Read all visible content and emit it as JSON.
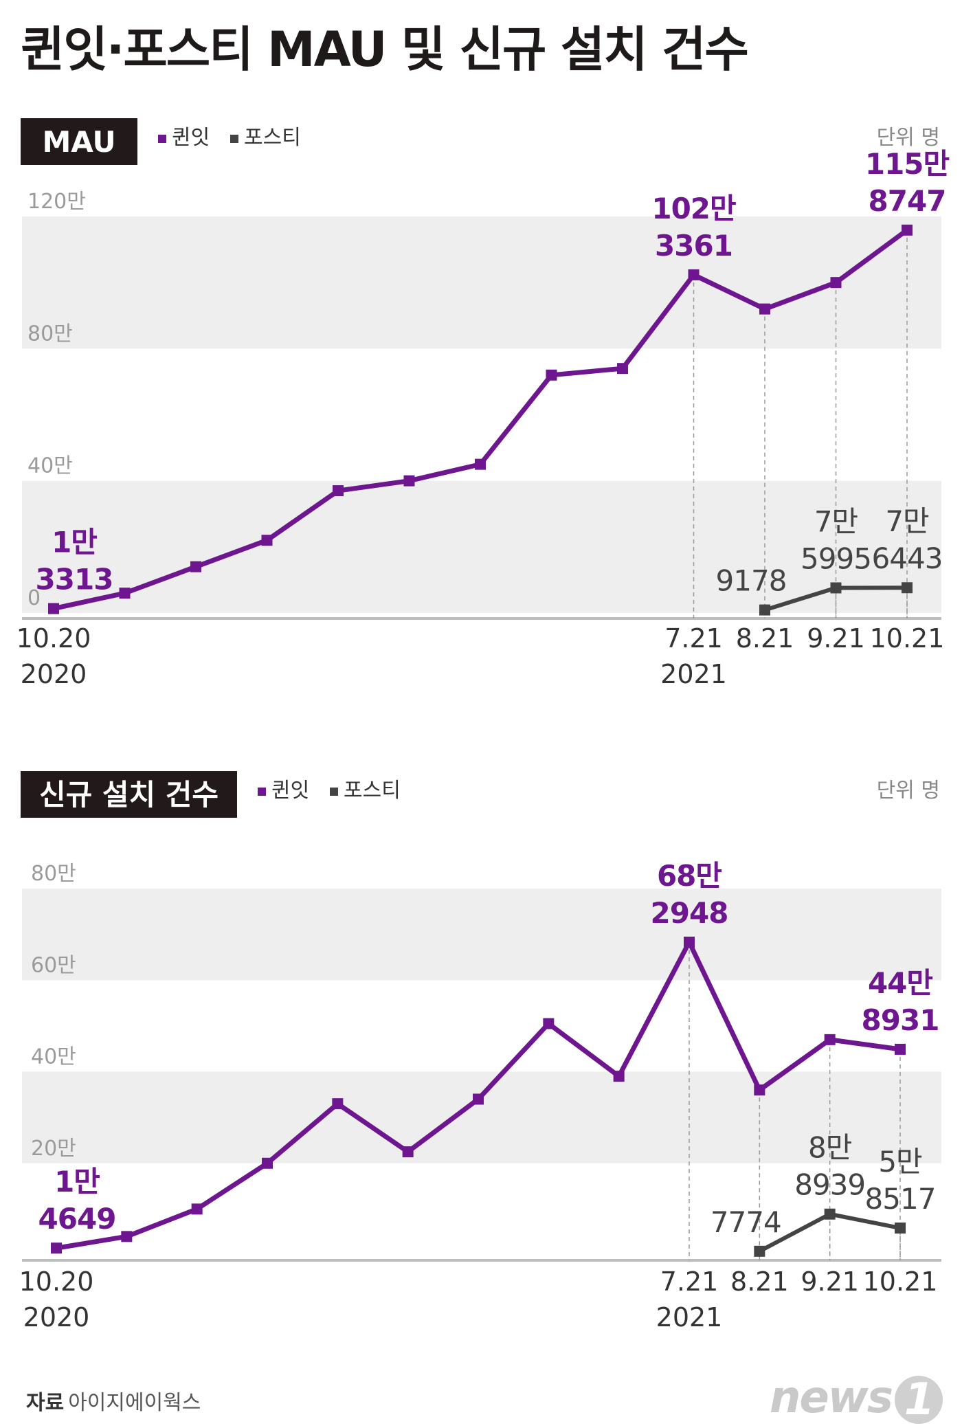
{
  "title": "퀸잇·포스티 MAU 및 신규 설치 건수",
  "source_label": "자료",
  "source_name": "아이지에이웍스",
  "logo_text": "news",
  "logo_mark": "1",
  "colors": {
    "queenit": "#6d168f",
    "posty": "#444444",
    "band": "#eeeeee",
    "tab": "#221a1a",
    "guide": "#9a9a9a",
    "tick": "#9a9a9a"
  },
  "chart_data": [
    {
      "type": "line",
      "tab_label": "MAU",
      "unit_label": "단위 명",
      "legend": [
        "퀸잇",
        "포스티"
      ],
      "x_labels": [
        {
          "index": 0,
          "label": "10.20",
          "year": "2020"
        },
        {
          "index": 9,
          "label": "7.21",
          "year": "2021"
        },
        {
          "index": 10,
          "label": "8.21"
        },
        {
          "index": 11,
          "label": "9.21"
        },
        {
          "index": 12,
          "label": "10.21"
        }
      ],
      "y_ticks": [
        {
          "value": 0,
          "label": "0"
        },
        {
          "value": 400000,
          "label": "40만"
        },
        {
          "value": 800000,
          "label": "80만"
        },
        {
          "value": 1200000,
          "label": "120만"
        }
      ],
      "ylim": [
        0,
        1200000
      ],
      "series": [
        {
          "name": "퀸잇",
          "values": [
            13313,
            60000,
            140000,
            220000,
            370000,
            400000,
            450000,
            720000,
            740000,
            1023361,
            920000,
            1000000,
            1158747
          ]
        },
        {
          "name": "포스티",
          "start_index": 10,
          "values": [
            9178,
            75995,
            76443
          ]
        }
      ],
      "annotations": [
        {
          "series": 0,
          "index": 0,
          "lines": [
            "1만",
            "3313"
          ]
        },
        {
          "series": 0,
          "index": 9,
          "lines": [
            "102만",
            "3361"
          ]
        },
        {
          "series": 0,
          "index": 12,
          "lines": [
            "115만",
            "8747"
          ]
        },
        {
          "series": 1,
          "index": 10,
          "lines": [
            "9178"
          ]
        },
        {
          "series": 1,
          "index": 11,
          "lines": [
            "7만",
            "5995"
          ]
        },
        {
          "series": 1,
          "index": 12,
          "lines": [
            "7만",
            "6443"
          ]
        }
      ]
    },
    {
      "type": "line",
      "tab_label": "신규 설치 건수",
      "unit_label": "단위 명",
      "legend": [
        "퀸잇",
        "포스티"
      ],
      "x_labels": [
        {
          "index": 0,
          "label": "10.20",
          "year": "2020"
        },
        {
          "index": 9,
          "label": "7.21",
          "year": "2021"
        },
        {
          "index": 10,
          "label": "8.21"
        },
        {
          "index": 11,
          "label": "9.21"
        },
        {
          "index": 12,
          "label": "10.21"
        }
      ],
      "y_ticks": [
        {
          "value": 200000,
          "label": "20만"
        },
        {
          "value": 400000,
          "label": "40만"
        },
        {
          "value": 600000,
          "label": "60만"
        },
        {
          "value": 800000,
          "label": "80만"
        }
      ],
      "ylim": [
        0,
        800000
      ],
      "series": [
        {
          "name": "퀸잇",
          "values": [
            14649,
            40000,
            100000,
            200000,
            330000,
            225000,
            340000,
            505000,
            390000,
            682948,
            360000,
            470000,
            448931
          ]
        },
        {
          "name": "포스티",
          "start_index": 10,
          "values": [
            7774,
            88939,
            58517
          ]
        }
      ],
      "annotations": [
        {
          "series": 0,
          "index": 0,
          "lines": [
            "1만",
            "4649"
          ]
        },
        {
          "series": 0,
          "index": 9,
          "lines": [
            "68만",
            "2948"
          ]
        },
        {
          "series": 0,
          "index": 12,
          "lines": [
            "44만",
            "8931"
          ]
        },
        {
          "series": 1,
          "index": 10,
          "lines": [
            "7774"
          ]
        },
        {
          "series": 1,
          "index": 11,
          "lines": [
            "8만",
            "8939"
          ]
        },
        {
          "series": 1,
          "index": 12,
          "lines": [
            "5만",
            "8517"
          ]
        }
      ]
    }
  ]
}
